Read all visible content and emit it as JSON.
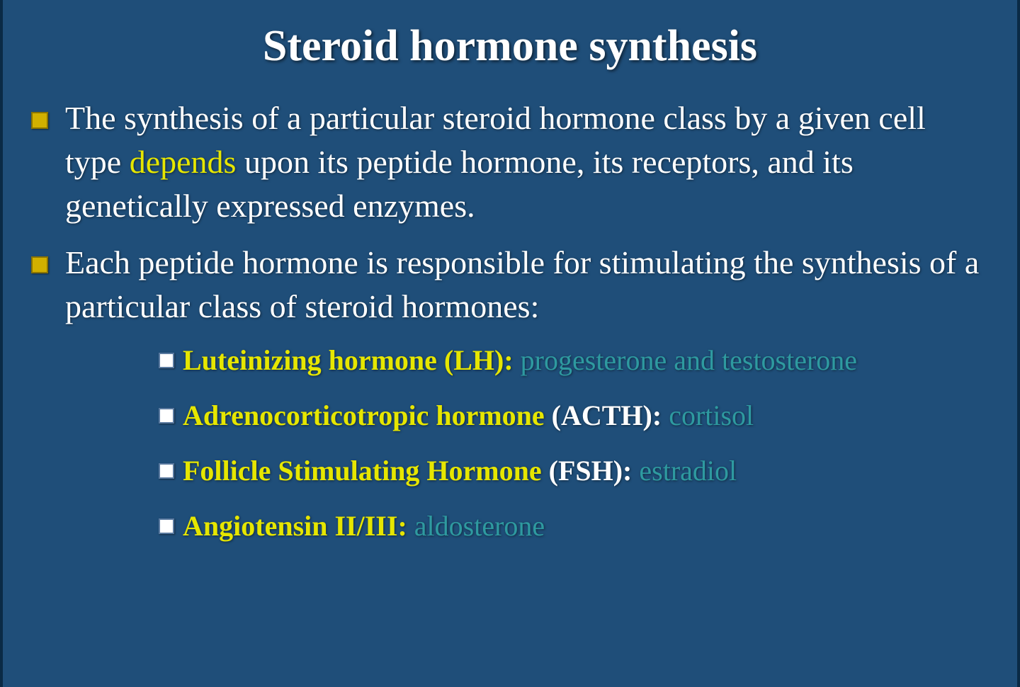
{
  "slide": {
    "background_color": "#1f4e79",
    "border_color": "#0a2a45",
    "title": {
      "text": "Steroid hormone synthesis",
      "color": "#ffffff",
      "font_size_pt": 44,
      "font_weight": "bold"
    },
    "colors": {
      "body_text": "#ffffff",
      "highlight_yellow": "#e6e600",
      "highlight_teal": "#2e9aa0",
      "bullet_l1_fill": "#d1b000",
      "bullet_l1_border": "#8a7400",
      "bullet_l2_fill": "#ffffff",
      "bullet_l2_border": "#5a7aa0"
    },
    "typography": {
      "body_font_size_pt": 34,
      "sub_font_size_pt": 30,
      "font_family": "Garamond"
    },
    "bullets_l1": [
      {
        "segments": [
          {
            "t": "The synthesis of a particular steroid hormone class by a given cell type ",
            "c": "white"
          },
          {
            "t": "depends",
            "c": "yellow"
          },
          {
            "t": " upon its peptide hormone, its receptors, and its genetically expressed enzymes.",
            "c": "white"
          }
        ]
      },
      {
        "segments": [
          {
            "t": "Each peptide hormone is responsible for stimulating the synthesis of a particular class of steroid hormones:",
            "c": "white"
          }
        ]
      }
    ],
    "bullets_l2": [
      {
        "segments": [
          {
            "t": "Luteinizing hormone (LH): ",
            "c": "yellow",
            "bold": true
          },
          {
            "t": "progesterone and testosterone",
            "c": "teal"
          }
        ]
      },
      {
        "segments": [
          {
            "t": "Adrenocorticotropic hormone",
            "c": "yellow",
            "bold": true
          },
          {
            "t": " (ACTH): ",
            "c": "white",
            "bold": true
          },
          {
            "t": "cortisol",
            "c": "teal"
          }
        ]
      },
      {
        "segments": [
          {
            "t": "Follicle Stimulating Hormone",
            "c": "yellow",
            "bold": true
          },
          {
            "t": " (FSH): ",
            "c": "white",
            "bold": true
          },
          {
            "t": "estradiol",
            "c": "teal"
          }
        ]
      },
      {
        "segments": [
          {
            "t": "Angiotensin II/III: ",
            "c": "yellow",
            "bold": true
          },
          {
            "t": "aldosterone",
            "c": "teal"
          }
        ]
      }
    ]
  }
}
